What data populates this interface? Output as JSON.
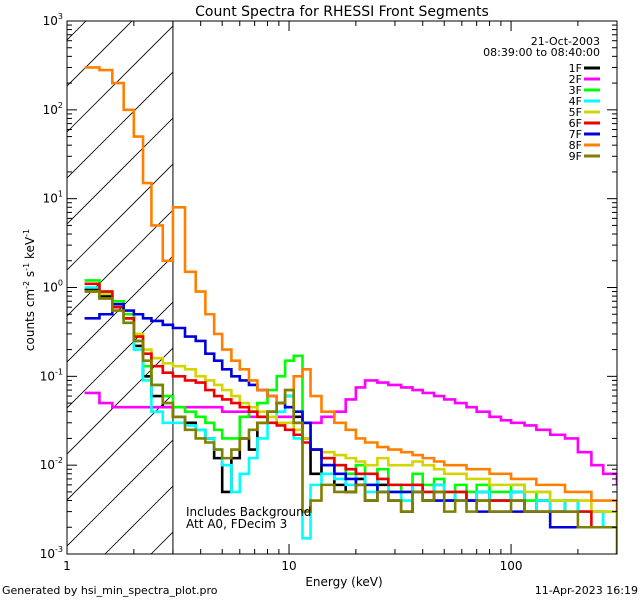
{
  "chart_data": {
    "type": "line",
    "title": "Count Spectra for RHESSI Front Segments",
    "xlabel": "Energy (keV)",
    "ylabel_parts": {
      "a": "counts cm",
      "b": "-2",
      "c": " s",
      "d": "-1",
      "e": " keV",
      "f": "-1"
    },
    "x_scale": "log",
    "y_scale": "log",
    "xlim": [
      1,
      300
    ],
    "ylim": [
      0.001,
      1000
    ],
    "x_ticks": [
      {
        "v": 1,
        "label": "1"
      },
      {
        "v": 10,
        "label": "10"
      },
      {
        "v": 100,
        "label": "100"
      }
    ],
    "y_ticks": [
      {
        "v": 0.001,
        "base": "10",
        "exp": "-3"
      },
      {
        "v": 0.01,
        "base": "10",
        "exp": "-2"
      },
      {
        "v": 0.1,
        "base": "10",
        "exp": "-1"
      },
      {
        "v": 1,
        "base": "10",
        "exp": "0"
      },
      {
        "v": 10,
        "base": "10",
        "exp": "1"
      },
      {
        "v": 100,
        "base": "10",
        "exp": "2"
      },
      {
        "v": 1000,
        "base": "10",
        "exp": "3"
      }
    ],
    "date": "21-Oct-2003",
    "time_range": "08:39:00 to 08:40:00",
    "hatch_limit_keV": 3,
    "annotations": [
      "Includes Background",
      "Att A0, FDecim 3"
    ],
    "series": [
      {
        "name": "1F",
        "color": "#000000",
        "x": [
          1.2,
          1.4,
          1.6,
          1.8,
          2.0,
          2.2,
          2.4,
          2.7,
          3.0,
          3.4,
          3.8,
          4.2,
          4.6,
          5.0,
          5.5,
          6.0,
          6.6,
          7.2,
          8.0,
          8.8,
          9.6,
          10.5,
          11.5,
          12.5,
          14,
          16,
          18,
          20,
          22,
          25,
          28,
          32,
          36,
          40,
          45,
          50,
          56,
          63,
          70,
          80,
          90,
          100,
          115,
          130,
          150,
          175,
          200,
          230,
          260,
          300
        ],
        "y": [
          0.95,
          0.8,
          0.6,
          0.45,
          0.22,
          0.1,
          0.06,
          0.045,
          0.035,
          0.03,
          0.025,
          0.02,
          0.012,
          0.005,
          0.012,
          0.02,
          0.015,
          0.03,
          0.04,
          0.05,
          0.06,
          0.035,
          0.02,
          0.008,
          0.01,
          0.006,
          0.005,
          0.007,
          0.004,
          0.006,
          0.004,
          0.003,
          0.006,
          0.004,
          0.006,
          0.004,
          0.005,
          0.004,
          0.005,
          0.004,
          0.004,
          0.005,
          0.003,
          0.004,
          0.003,
          0.004,
          0.003,
          0.003,
          0.002,
          0.002
        ]
      },
      {
        "name": "2F",
        "color": "#ff00ff",
        "x": [
          1.2,
          1.4,
          1.6,
          1.8,
          2.0,
          2.2,
          2.4,
          2.7,
          3.0,
          3.4,
          3.8,
          4.2,
          4.6,
          5.0,
          5.5,
          6.0,
          6.6,
          7.2,
          8.0,
          8.8,
          9.6,
          10.5,
          11.5,
          12.5,
          14,
          16,
          18,
          20,
          22,
          25,
          28,
          32,
          36,
          40,
          45,
          50,
          56,
          63,
          70,
          80,
          90,
          100,
          115,
          130,
          150,
          175,
          200,
          230,
          260,
          300
        ],
        "y": [
          0.065,
          0.05,
          0.045,
          0.045,
          0.045,
          0.045,
          0.045,
          0.045,
          0.045,
          0.045,
          0.045,
          0.045,
          0.045,
          0.04,
          0.04,
          0.04,
          0.035,
          0.035,
          0.035,
          0.035,
          0.035,
          0.03,
          0.03,
          0.03,
          0.035,
          0.04,
          0.055,
          0.075,
          0.09,
          0.085,
          0.08,
          0.075,
          0.07,
          0.065,
          0.06,
          0.055,
          0.05,
          0.045,
          0.04,
          0.035,
          0.032,
          0.03,
          0.028,
          0.025,
          0.022,
          0.02,
          0.014,
          0.01,
          0.008,
          0.006
        ]
      },
      {
        "name": "3F",
        "color": "#00ff00",
        "x": [
          1.2,
          1.4,
          1.6,
          1.8,
          2.0,
          2.2,
          2.4,
          2.7,
          3.0,
          3.4,
          3.8,
          4.2,
          4.6,
          5.0,
          5.5,
          6.0,
          6.6,
          7.2,
          8.0,
          8.8,
          9.6,
          10.5,
          11.5,
          12.5,
          14,
          16,
          18,
          20,
          22,
          25,
          28,
          32,
          36,
          40,
          45,
          50,
          56,
          63,
          70,
          80,
          90,
          100,
          115,
          130,
          150,
          175,
          200,
          230,
          260,
          300
        ],
        "y": [
          1.2,
          0.9,
          0.7,
          0.5,
          0.25,
          0.13,
          0.08,
          0.06,
          0.045,
          0.04,
          0.035,
          0.03,
          0.025,
          0.02,
          0.02,
          0.035,
          0.04,
          0.05,
          0.07,
          0.1,
          0.15,
          0.17,
          0.03,
          0.015,
          0.012,
          0.01,
          0.008,
          0.01,
          0.006,
          0.009,
          0.006,
          0.005,
          0.008,
          0.006,
          0.007,
          0.005,
          0.006,
          0.005,
          0.006,
          0.005,
          0.005,
          0.006,
          0.004,
          0.005,
          0.004,
          0.004,
          0.003,
          0.003,
          0.003,
          0.002
        ]
      },
      {
        "name": "4F",
        "color": "#00ffff",
        "x": [
          1.2,
          1.4,
          1.6,
          1.8,
          2.0,
          2.2,
          2.4,
          2.7,
          3.0,
          3.4,
          3.8,
          4.2,
          4.6,
          5.0,
          5.5,
          6.0,
          6.6,
          7.2,
          8.0,
          8.8,
          9.6,
          10.5,
          11.5,
          12.5,
          14,
          16,
          18,
          20,
          22,
          25,
          28,
          32,
          36,
          40,
          45,
          50,
          56,
          63,
          70,
          80,
          90,
          100,
          115,
          130,
          150,
          175,
          200,
          230,
          260,
          300
        ],
        "y": [
          1.0,
          0.85,
          0.6,
          0.4,
          0.2,
          0.09,
          0.04,
          0.03,
          0.03,
          0.028,
          0.025,
          0.02,
          0.015,
          0.01,
          0.005,
          0.008,
          0.012,
          0.02,
          0.03,
          0.04,
          0.06,
          0.02,
          0.0015,
          0.006,
          0.008,
          0.007,
          0.006,
          0.008,
          0.005,
          0.007,
          0.005,
          0.004,
          0.006,
          0.005,
          0.006,
          0.004,
          0.005,
          0.004,
          0.005,
          0.004,
          0.004,
          0.005,
          0.003,
          0.004,
          0.003,
          0.004,
          0.003,
          0.003,
          0.002,
          0.002
        ]
      },
      {
        "name": "5F",
        "color": "#d4d400",
        "x": [
          1.2,
          1.4,
          1.6,
          1.8,
          2.0,
          2.2,
          2.4,
          2.7,
          3.0,
          3.4,
          3.8,
          4.2,
          4.6,
          5.0,
          5.5,
          6.0,
          6.6,
          7.2,
          8.0,
          8.8,
          9.6,
          10.5,
          11.5,
          12.5,
          14,
          16,
          18,
          20,
          22,
          25,
          28,
          32,
          36,
          40,
          45,
          50,
          56,
          63,
          70,
          80,
          90,
          100,
          115,
          130,
          150,
          175,
          200,
          230,
          260,
          300
        ],
        "y": [
          0.9,
          0.85,
          0.65,
          0.45,
          0.3,
          0.2,
          0.16,
          0.14,
          0.13,
          0.12,
          0.1,
          0.09,
          0.08,
          0.07,
          0.06,
          0.05,
          0.045,
          0.04,
          0.035,
          0.03,
          0.03,
          0.025,
          0.02,
          0.015,
          0.014,
          0.013,
          0.012,
          0.011,
          0.01,
          0.012,
          0.01,
          0.01,
          0.011,
          0.01,
          0.009,
          0.008,
          0.008,
          0.007,
          0.007,
          0.006,
          0.006,
          0.006,
          0.005,
          0.005,
          0.004,
          0.004,
          0.004,
          0.003,
          0.003,
          0.002
        ]
      },
      {
        "name": "6F",
        "color": "#ee0000",
        "x": [
          1.2,
          1.4,
          1.6,
          1.8,
          2.0,
          2.2,
          2.4,
          2.7,
          3.0,
          3.4,
          3.8,
          4.2,
          4.6,
          5.0,
          5.5,
          6.0,
          6.6,
          7.2,
          8.0,
          8.8,
          9.6,
          10.5,
          11.5,
          12.5,
          14,
          16,
          18,
          20,
          22,
          25,
          28,
          32,
          36,
          40,
          45,
          50,
          56,
          63,
          70,
          80,
          90,
          100,
          115,
          130,
          150,
          175,
          200,
          230,
          260,
          300
        ],
        "y": [
          1.1,
          0.9,
          0.6,
          0.45,
          0.28,
          0.18,
          0.13,
          0.11,
          0.1,
          0.09,
          0.085,
          0.07,
          0.06,
          0.055,
          0.05,
          0.045,
          0.04,
          0.035,
          0.03,
          0.028,
          0.025,
          0.022,
          0.018,
          0.015,
          0.012,
          0.01,
          0.009,
          0.008,
          0.008,
          0.007,
          0.006,
          0.006,
          0.006,
          0.005,
          0.005,
          0.005,
          0.005,
          0.004,
          0.004,
          0.004,
          0.004,
          0.004,
          0.003,
          0.003,
          0.003,
          0.003,
          0.003,
          0.002,
          0.002,
          0.002
        ]
      },
      {
        "name": "7F",
        "color": "#0000dd",
        "x": [
          1.2,
          1.4,
          1.6,
          1.8,
          2.0,
          2.2,
          2.4,
          2.7,
          3.0,
          3.4,
          3.8,
          4.2,
          4.6,
          5.0,
          5.5,
          6.0,
          6.6,
          7.2,
          8.0,
          8.8,
          9.6,
          10.5,
          11.5,
          12.5,
          14,
          16,
          18,
          20,
          22,
          25,
          28,
          32,
          36,
          40,
          45,
          50,
          56,
          63,
          70,
          80,
          90,
          100,
          115,
          130,
          150,
          175,
          200,
          230,
          260,
          300
        ],
        "y": [
          0.45,
          0.5,
          0.65,
          0.55,
          0.5,
          0.45,
          0.42,
          0.38,
          0.35,
          0.28,
          0.25,
          0.18,
          0.15,
          0.12,
          0.1,
          0.09,
          0.08,
          0.07,
          0.06,
          0.05,
          0.045,
          0.04,
          0.03,
          0.015,
          0.01,
          0.008,
          0.007,
          0.006,
          0.006,
          0.005,
          0.005,
          0.005,
          0.005,
          0.004,
          0.004,
          0.004,
          0.004,
          0.004,
          0.003,
          0.003,
          0.003,
          0.003,
          0.003,
          0.003,
          0.002,
          0.002,
          0.002,
          0.002,
          0.002,
          0.002
        ]
      },
      {
        "name": "8F",
        "color": "#ff8000",
        "x": [
          1.2,
          1.4,
          1.6,
          1.8,
          2.0,
          2.2,
          2.4,
          2.7,
          3.0,
          3.4,
          3.8,
          4.2,
          4.6,
          5.0,
          5.5,
          6.0,
          6.6,
          7.2,
          8.0,
          8.8,
          9.6,
          10.5,
          11.5,
          12.5,
          14,
          16,
          18,
          20,
          22,
          25,
          28,
          32,
          36,
          40,
          45,
          50,
          56,
          63,
          70,
          80,
          90,
          100,
          115,
          130,
          150,
          175,
          200,
          230,
          260,
          300
        ],
        "y": [
          300,
          280,
          200,
          100,
          50,
          15,
          5,
          2,
          8,
          1.5,
          0.9,
          0.5,
          0.3,
          0.2,
          0.15,
          0.12,
          0.09,
          0.07,
          0.06,
          0.05,
          0.07,
          0.1,
          0.12,
          0.06,
          0.04,
          0.03,
          0.025,
          0.02,
          0.018,
          0.016,
          0.015,
          0.014,
          0.013,
          0.012,
          0.011,
          0.01,
          0.01,
          0.009,
          0.009,
          0.008,
          0.008,
          0.007,
          0.007,
          0.006,
          0.006,
          0.005,
          0.005,
          0.004,
          0.004,
          0.003
        ]
      },
      {
        "name": "9F",
        "color": "#808000",
        "x": [
          1.2,
          1.4,
          1.6,
          1.8,
          2.0,
          2.2,
          2.4,
          2.7,
          3.0,
          3.4,
          3.8,
          4.2,
          4.6,
          5.0,
          5.5,
          6.0,
          6.6,
          7.2,
          8.0,
          8.8,
          9.6,
          10.5,
          11.5,
          12.5,
          14,
          16,
          18,
          20,
          22,
          25,
          28,
          32,
          36,
          40,
          45,
          50,
          56,
          63,
          70,
          80,
          90,
          100,
          115,
          130,
          150,
          175,
          200,
          230,
          260,
          300
        ],
        "y": [
          0.9,
          0.75,
          0.55,
          0.4,
          0.25,
          0.15,
          0.08,
          0.05,
          0.035,
          0.025,
          0.02,
          0.018,
          0.015,
          0.012,
          0.015,
          0.02,
          0.025,
          0.03,
          0.04,
          0.05,
          0.07,
          0.03,
          0.003,
          0.004,
          0.006,
          0.005,
          0.005,
          0.006,
          0.004,
          0.005,
          0.004,
          0.003,
          0.005,
          0.004,
          0.005,
          0.003,
          0.004,
          0.003,
          0.004,
          0.003,
          0.003,
          0.004,
          0.003,
          0.003,
          0.003,
          0.003,
          0.002,
          0.002,
          0.002,
          0.001
        ]
      }
    ]
  },
  "footer": {
    "generated_by": "Generated by hsi_min_spectra_plot.pro",
    "timestamp": "11-Apr-2023 16:19"
  }
}
